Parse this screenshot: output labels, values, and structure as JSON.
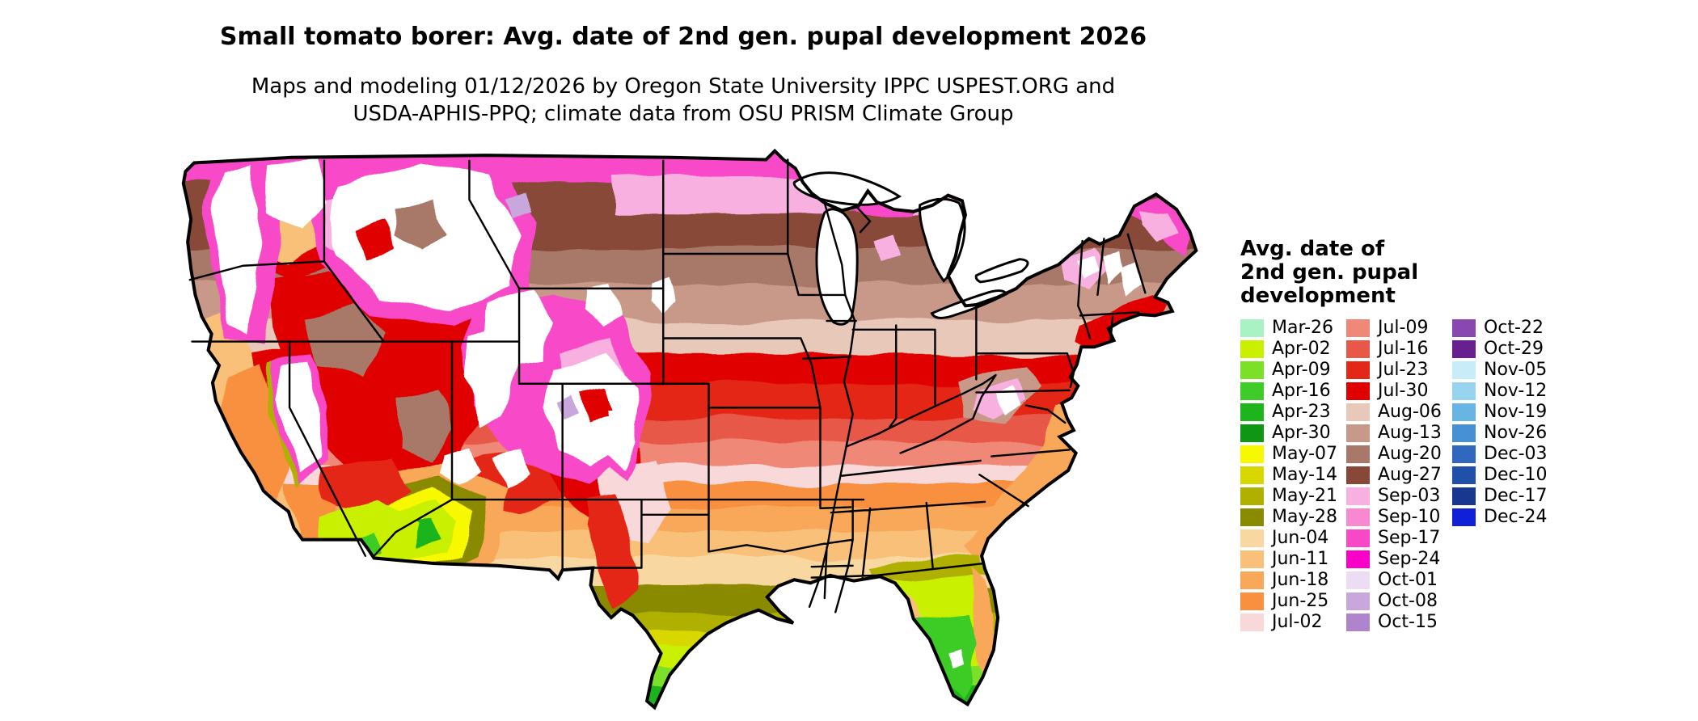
{
  "title": "Small tomato borer: Avg. date of 2nd gen. pupal development 2026",
  "subtitle_lines": [
    "Maps and modeling 01/12/2026 by Oregon State University IPPC USPEST.ORG and",
    "USDA-APHIS-PPQ; climate data from OSU PRISM Climate Group"
  ],
  "map": {
    "type": "choropleth",
    "region": "Continental United States"
  },
  "legend": {
    "title_lines": [
      "Avg. date of",
      "2nd gen. pupal",
      "development"
    ],
    "entries": [
      {
        "label": "Mar-26",
        "color": "#a8f2c4"
      },
      {
        "label": "Apr-02",
        "color": "#c8f000"
      },
      {
        "label": "Apr-09",
        "color": "#7ce029"
      },
      {
        "label": "Apr-16",
        "color": "#3ecc28"
      },
      {
        "label": "Apr-23",
        "color": "#1eb41e"
      },
      {
        "label": "Apr-30",
        "color": "#0f9614"
      },
      {
        "label": "May-07",
        "color": "#f8f800"
      },
      {
        "label": "May-14",
        "color": "#d8d800"
      },
      {
        "label": "May-21",
        "color": "#b0b000"
      },
      {
        "label": "May-28",
        "color": "#8a8a00"
      },
      {
        "label": "Jun-04",
        "color": "#f8d8a0"
      },
      {
        "label": "Jun-11",
        "color": "#f8c078"
      },
      {
        "label": "Jun-18",
        "color": "#f8a858"
      },
      {
        "label": "Jun-25",
        "color": "#f89040"
      },
      {
        "label": "Jul-02",
        "color": "#f8d8d8"
      },
      {
        "label": "Jul-09",
        "color": "#f08878"
      },
      {
        "label": "Jul-16",
        "color": "#e85848"
      },
      {
        "label": "Jul-23",
        "color": "#e42818"
      },
      {
        "label": "Jul-30",
        "color": "#e00000"
      },
      {
        "label": "Aug-06",
        "color": "#e8c8b8"
      },
      {
        "label": "Aug-13",
        "color": "#c89888"
      },
      {
        "label": "Aug-20",
        "color": "#a87868"
      },
      {
        "label": "Aug-27",
        "color": "#884838"
      },
      {
        "label": "Sep-03",
        "color": "#f8b0e0"
      },
      {
        "label": "Sep-10",
        "color": "#f888d0"
      },
      {
        "label": "Sep-17",
        "color": "#f848c8"
      },
      {
        "label": "Sep-24",
        "color": "#f800c8"
      },
      {
        "label": "Oct-01",
        "color": "#ecdcf4"
      },
      {
        "label": "Oct-08",
        "color": "#c8a8dc"
      },
      {
        "label": "Oct-15",
        "color": "#b084cc"
      },
      {
        "label": "Oct-22",
        "color": "#8848b0"
      },
      {
        "label": "Oct-29",
        "color": "#682090"
      },
      {
        "label": "Nov-05",
        "color": "#c8ecf8"
      },
      {
        "label": "Nov-12",
        "color": "#98d4f0"
      },
      {
        "label": "Nov-19",
        "color": "#68b4e4"
      },
      {
        "label": "Nov-26",
        "color": "#4890d4"
      },
      {
        "label": "Dec-03",
        "color": "#3068c0"
      },
      {
        "label": "Dec-10",
        "color": "#2050a8"
      },
      {
        "label": "Dec-17",
        "color": "#183890"
      },
      {
        "label": "Dec-24",
        "color": "#1020d8"
      }
    ]
  }
}
